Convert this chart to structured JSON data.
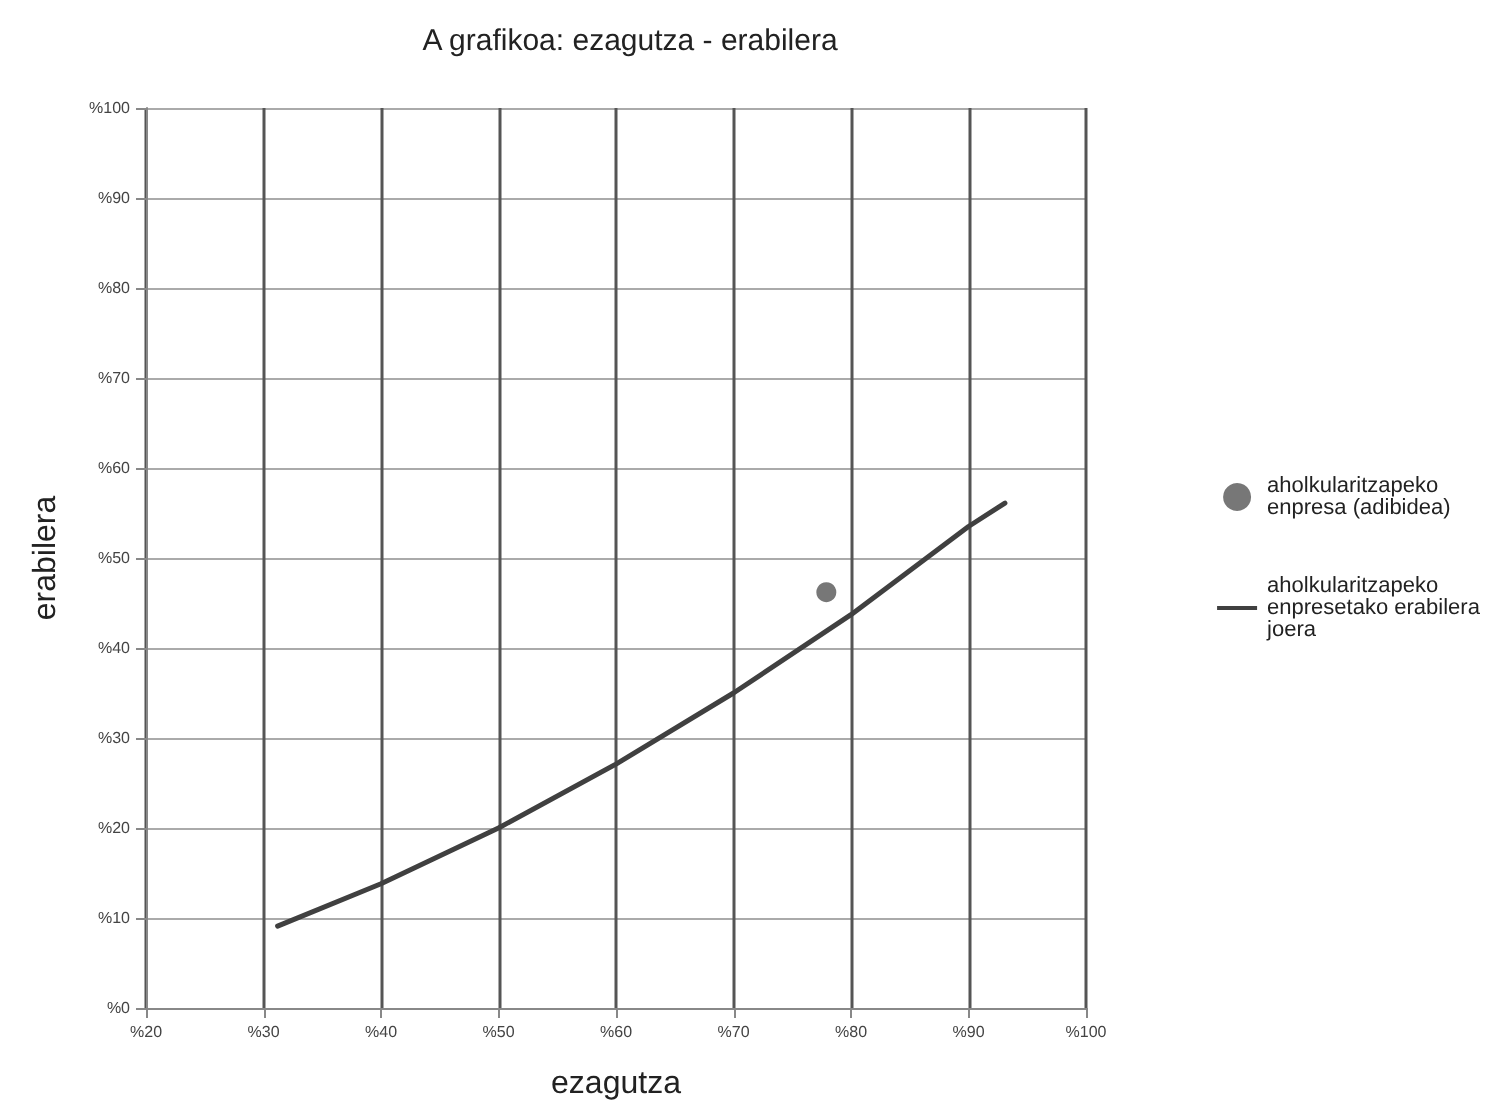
{
  "chart_data": {
    "type": "scatter",
    "title": "A grafikoa: ezagutza - erabilera",
    "xlabel": "ezagutza",
    "ylabel": "erabilera",
    "xlim": [
      20,
      100
    ],
    "ylim": [
      0,
      100
    ],
    "xticks": [
      {
        "value": 20,
        "label": "%20"
      },
      {
        "value": 30,
        "label": "%30"
      },
      {
        "value": 40,
        "label": "%40"
      },
      {
        "value": 50,
        "label": "%50"
      },
      {
        "value": 60,
        "label": "%60"
      },
      {
        "value": 70,
        "label": "%70"
      },
      {
        "value": 80,
        "label": "%80"
      },
      {
        "value": 90,
        "label": "%90"
      },
      {
        "value": 100,
        "label": "%100"
      }
    ],
    "yticks": [
      {
        "value": 0,
        "label": "%0"
      },
      {
        "value": 10,
        "label": "%10"
      },
      {
        "value": 20,
        "label": "%20"
      },
      {
        "value": 30,
        "label": "%30"
      },
      {
        "value": 40,
        "label": "%40"
      },
      {
        "value": 50,
        "label": "%50"
      },
      {
        "value": 60,
        "label": "%60"
      },
      {
        "value": 70,
        "label": "%70"
      },
      {
        "value": 80,
        "label": "%80"
      },
      {
        "value": 90,
        "label": "%90"
      },
      {
        "value": 100,
        "label": "%100"
      }
    ],
    "series": [
      {
        "name": "aholkularitzapeko enpresa (adibidea)",
        "color": "#555555",
        "marker": "circle",
        "x": [
          77.9
        ],
        "values": [
          46.2
        ]
      },
      {
        "name": "aholkularitzapeko enpresetako erabilera joera",
        "type": "line",
        "color": "#404040",
        "marker": "none",
        "line_style": "solid",
        "x": [
          31.2,
          40,
          50,
          60,
          70,
          80,
          90,
          93.1
        ],
        "values": [
          9.1,
          13.8,
          20,
          27.1,
          35,
          43.7,
          53.5,
          56.1
        ]
      }
    ],
    "grid": true,
    "legend": "right"
  }
}
